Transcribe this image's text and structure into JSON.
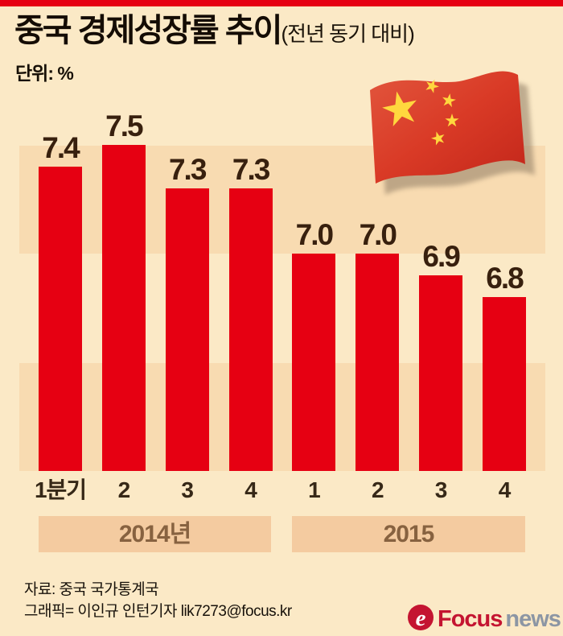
{
  "header": {
    "title": "중국 경제성장률 추이",
    "subtitle": "(전년 동기 대비)",
    "unit": "단위: %"
  },
  "chart_data": {
    "type": "bar",
    "title": "중국 경제성장률 추이 (전년 동기 대비)",
    "ylabel": "단위: %",
    "categories": [
      "1분기",
      "2",
      "3",
      "4",
      "1",
      "2",
      "3",
      "4"
    ],
    "values": [
      7.4,
      7.5,
      7.3,
      7.3,
      7.0,
      7.0,
      6.9,
      6.8
    ],
    "value_labels": [
      "7.4",
      "7.5",
      "7.3",
      "7.3",
      "7.0",
      "7.0",
      "6.9",
      "6.8"
    ],
    "year_groups": [
      {
        "label": "2014년"
      },
      {
        "label": "2015"
      }
    ],
    "ylim": [
      6.0,
      7.6
    ],
    "grid": "alternating horizontal bands at 6.0-6.5 and 7.0-7.5",
    "legend": "none",
    "bar_color": "#e60012",
    "band_color": "#f8dbb1",
    "background_color": "#fbe9c6"
  },
  "flag": {
    "name": "중국 국기 (오성홍기)",
    "red": "#d93a26",
    "star_yellow": "#ffd73e"
  },
  "footer": {
    "source": "자료: 중국 국가통계국",
    "credit": "그래픽= 이인규 인턴기자 lik7273@focus.kr"
  },
  "logo": {
    "brand": "Focus",
    "suffix": "news",
    "icon_letter": "e",
    "brand_color": "#c41431",
    "suffix_color": "#8c96a4"
  }
}
